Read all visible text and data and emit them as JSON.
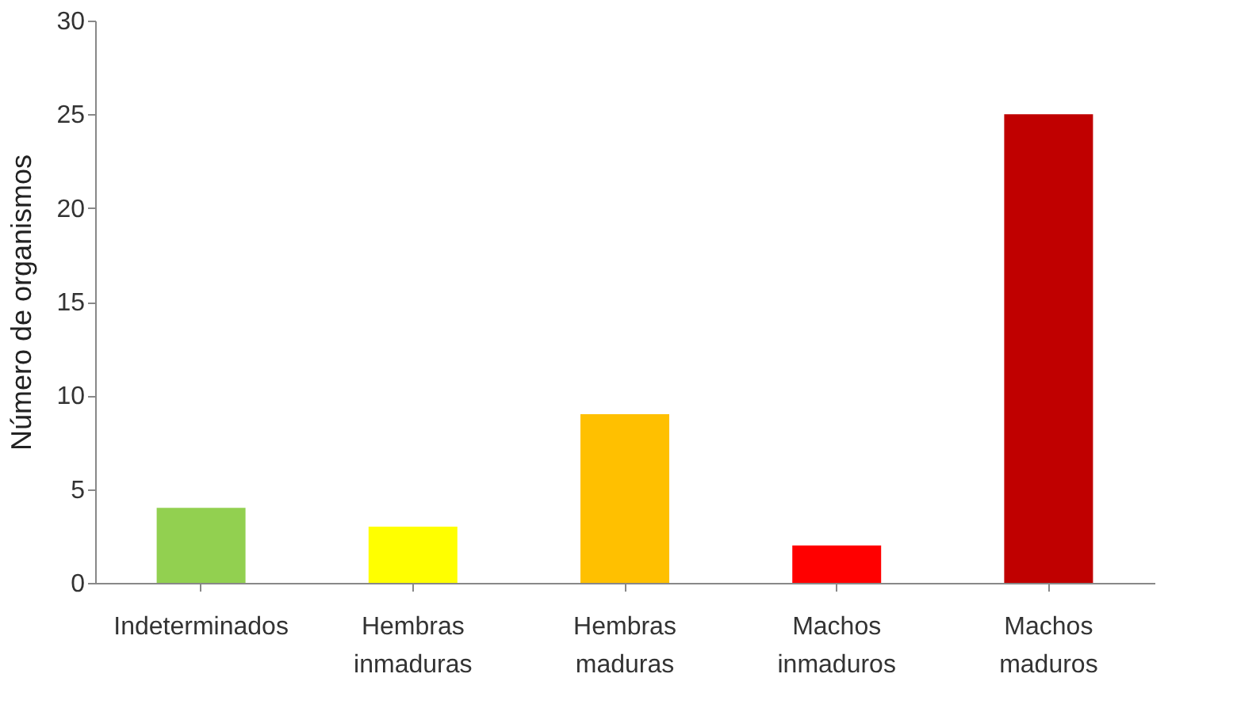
{
  "chart_data": {
    "type": "bar",
    "ylabel": "Número de organismos",
    "categories": [
      "Indeterminados",
      "Hembras inmaduras",
      "Hembras maduras",
      "Machos inmaduros",
      "Machos maduros"
    ],
    "values": [
      4,
      3,
      9,
      2,
      25
    ],
    "colors": [
      "#92d050",
      "#ffff00",
      "#ffc000",
      "#ff0000",
      "#c00000"
    ],
    "ylim": [
      0,
      30
    ],
    "yticks": [
      0,
      5,
      10,
      15,
      20,
      25,
      30
    ],
    "grid": false
  }
}
